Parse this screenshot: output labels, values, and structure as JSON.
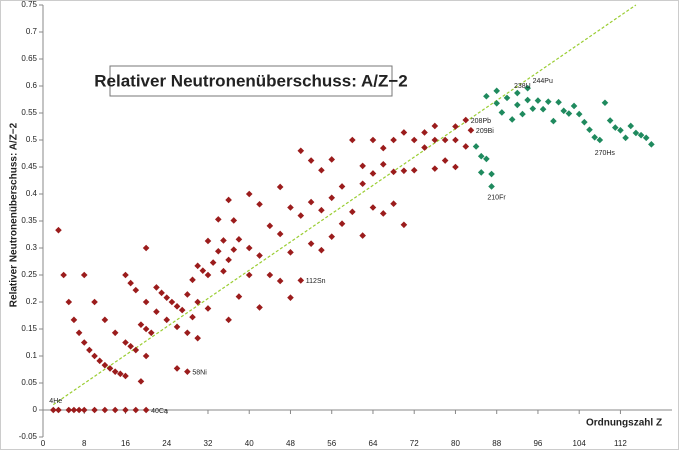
{
  "chart_data": {
    "type": "scatter",
    "title": "Relativer Neutronenüberschuss: A/Z−2",
    "x_label": "Ordnungszahl  Z",
    "y_label": "Relativer Neutronenüberschuss:  A/Z−2",
    "xlim": [
      0,
      122
    ],
    "ylim": [
      -0.05,
      0.75
    ],
    "xticks": [
      0,
      8,
      16,
      24,
      32,
      40,
      48,
      56,
      64,
      72,
      80,
      88,
      96,
      104,
      112
    ],
    "yticks": [
      -0.05,
      0,
      0.05,
      0.1,
      0.15,
      0.2,
      0.25,
      0.3,
      0.35,
      0.4,
      0.45,
      0.5,
      0.55,
      0.6,
      0.65,
      0.7,
      0.75
    ],
    "grid": false,
    "series": [
      {
        "color": "#9b1c1c",
        "x": [
          2,
          3,
          3,
          4,
          5,
          5,
          6,
          6,
          7,
          7,
          8,
          8,
          8,
          9,
          10,
          10,
          10,
          11,
          12,
          12,
          12,
          13,
          14,
          14,
          14,
          15,
          16,
          16,
          16,
          16,
          17,
          17,
          18,
          18,
          18,
          19,
          19,
          20,
          20,
          20,
          20,
          20,
          21,
          22,
          22,
          23,
          24,
          24,
          25,
          26,
          26,
          26,
          27,
          28,
          28,
          28,
          29,
          29,
          30,
          30,
          30,
          31,
          32,
          32,
          32,
          33,
          34,
          34,
          35,
          35,
          36,
          36,
          36,
          37,
          37,
          38,
          38,
          40,
          40,
          40,
          42,
          42,
          42,
          44,
          44,
          46,
          46,
          46,
          48,
          48,
          48,
          50,
          50,
          50,
          52,
          52,
          52,
          54,
          54,
          54,
          56,
          56,
          56,
          58,
          58,
          60,
          60,
          62,
          62,
          62,
          64,
          64,
          64,
          66,
          66,
          66,
          68,
          68,
          68,
          70,
          70,
          70,
          72,
          72,
          74,
          74,
          76,
          76,
          76,
          78,
          78,
          80,
          80,
          80,
          82,
          82,
          83
        ],
        "y": [
          0,
          0,
          0.333,
          0.25,
          0,
          0.2,
          0,
          0.167,
          0,
          0.143,
          0,
          0.125,
          0.25,
          0.111,
          0,
          0.1,
          0.2,
          0.091,
          0,
          0.083,
          0.167,
          0.077,
          0,
          0.071,
          0.143,
          0.067,
          0,
          0.063,
          0.125,
          0.25,
          0.118,
          0.235,
          0,
          0.111,
          0.222,
          0.053,
          0.158,
          0,
          0.1,
          0.15,
          0.2,
          0.3,
          0.143,
          0.182,
          0.227,
          0.217,
          0.167,
          0.208,
          0.2,
          0.077,
          0.154,
          0.192,
          0.185,
          0.071,
          0.143,
          0.214,
          0.172,
          0.241,
          0.133,
          0.2,
          0.267,
          0.258,
          0.188,
          0.25,
          0.313,
          0.273,
          0.294,
          0.353,
          0.257,
          0.314,
          0.167,
          0.278,
          0.389,
          0.297,
          0.351,
          0.21,
          0.316,
          0.25,
          0.3,
          0.4,
          0.19,
          0.286,
          0.381,
          0.25,
          0.341,
          0.239,
          0.326,
          0.413,
          0.208,
          0.292,
          0.375,
          0.24,
          0.36,
          0.48,
          0.308,
          0.385,
          0.462,
          0.296,
          0.37,
          0.444,
          0.321,
          0.393,
          0.464,
          0.345,
          0.414,
          0.367,
          0.5,
          0.323,
          0.419,
          0.452,
          0.375,
          0.438,
          0.5,
          0.364,
          0.455,
          0.485,
          0.382,
          0.441,
          0.5,
          0.343,
          0.443,
          0.514,
          0.444,
          0.5,
          0.486,
          0.514,
          0.447,
          0.5,
          0.526,
          0.462,
          0.5,
          0.45,
          0.5,
          0.525,
          0.488,
          0.537,
          0.518
        ]
      },
      {
        "color": "#1f8a5e",
        "x": [
          84,
          85,
          85,
          86,
          86,
          87,
          87,
          88,
          88,
          89,
          90,
          91,
          92,
          92,
          93,
          94,
          94,
          95,
          96,
          97,
          98,
          99,
          100,
          101,
          102,
          103,
          104,
          105,
          106,
          107,
          108,
          109,
          110,
          111,
          112,
          113,
          114,
          115,
          116,
          117,
          118
        ],
        "y": [
          0.488,
          0.47,
          0.44,
          0.581,
          0.465,
          0.414,
          0.437,
          0.568,
          0.591,
          0.551,
          0.578,
          0.538,
          0.587,
          0.565,
          0.548,
          0.596,
          0.574,
          0.558,
          0.573,
          0.557,
          0.571,
          0.535,
          0.57,
          0.554,
          0.549,
          0.563,
          0.548,
          0.533,
          0.519,
          0.505,
          0.5,
          0.569,
          0.536,
          0.523,
          0.518,
          0.504,
          0.526,
          0.513,
          0.509,
          0.504,
          0.492
        ]
      }
    ],
    "trendline": {
      "color": "#9acd32",
      "x": [
        2,
        115
      ],
      "y": [
        0.01,
        0.75
      ]
    },
    "annotations": [
      {
        "text": "4He",
        "x": 2,
        "y": 0
      },
      {
        "text": "40Ca",
        "x": 20,
        "y": 0
      },
      {
        "text": "58Ni",
        "x": 28,
        "y": 0.071
      },
      {
        "text": "112Sn",
        "x": 50,
        "y": 0.24
      },
      {
        "text": "208Pb",
        "x": 82,
        "y": 0.537
      },
      {
        "text": "209Bi",
        "x": 83,
        "y": 0.518
      },
      {
        "text": "210Fr",
        "x": 87,
        "y": 0.414
      },
      {
        "text": "238U",
        "x": 92,
        "y": 0.587
      },
      {
        "text": "244Pu",
        "x": 94,
        "y": 0.596
      },
      {
        "text": "270Hs",
        "x": 108,
        "y": 0.5
      }
    ]
  }
}
